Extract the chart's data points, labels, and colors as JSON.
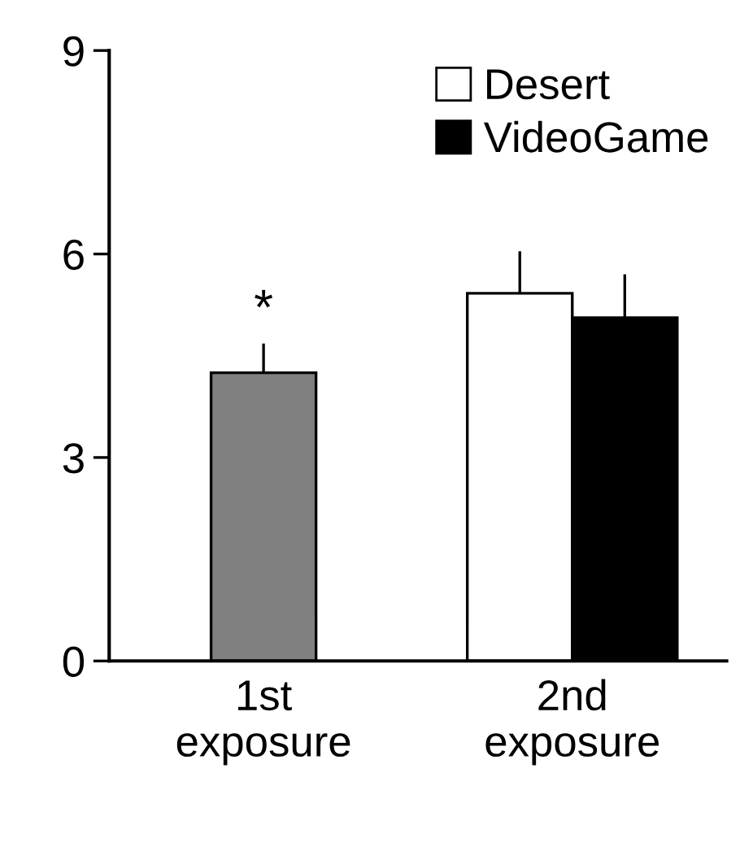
{
  "chart_data": {
    "type": "bar",
    "categories": [
      "1st\nexposure",
      "2nd\nexposure"
    ],
    "series": [
      {
        "color": "#808080",
        "values": [
          4.25,
          null
        ],
        "errors": [
          [
            4.25,
            4.68
          ],
          null
        ]
      },
      {
        "name": "Desert",
        "color": "#ffffff",
        "values": [
          null,
          5.42
        ],
        "errors": [
          null,
          [
            5.42,
            6.04
          ]
        ]
      },
      {
        "name": "VideoGame",
        "color": "#000000",
        "values": [
          null,
          5.06
        ],
        "errors": [
          null,
          [
            5.06,
            5.7
          ]
        ]
      }
    ],
    "ylim": [
      0,
      9
    ],
    "yticks": [
      0,
      3,
      6,
      9
    ],
    "annotations": [
      "*"
    ],
    "legend": "top right",
    "grid": false
  }
}
